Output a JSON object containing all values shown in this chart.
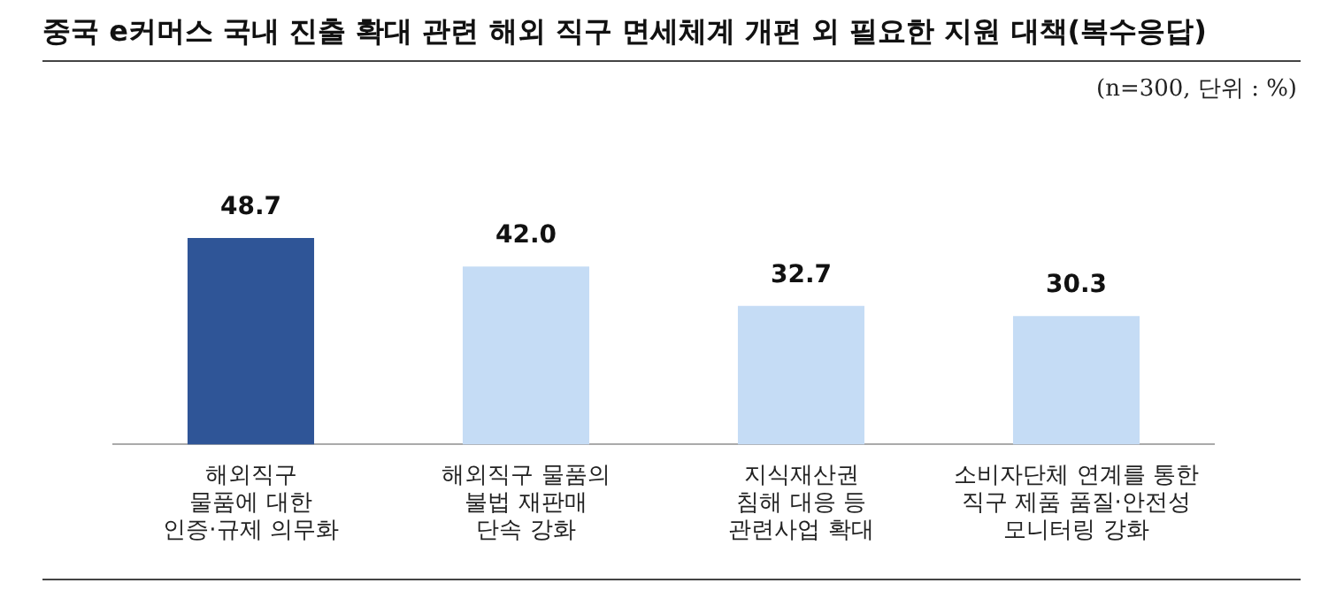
{
  "chart_data": {
    "type": "bar",
    "title": "중국 e커머스 국내 진출 확대 관련 해외 직구 면세체계 개편 외 필요한 지원 대책(복수응답)",
    "subtitle": "(n=300, 단위 : %)",
    "categories": [
      "해외직구\n물품에 대한\n인증·규제 의무화",
      "해외직구 물품의\n불법 재판매\n단속 강화",
      "지식재산권\n침해 대응 등\n관련사업 확대",
      "소비자단체 연계를 통한\n직구 제품 품질·안전성\n모니터링 강화"
    ],
    "values": [
      48.7,
      42.0,
      32.7,
      30.3
    ],
    "colors": [
      "#2f5597",
      "#c5dcf5",
      "#c5dcf5",
      "#c5dcf5"
    ],
    "value_labels": [
      "48.7",
      "42.0",
      "32.7",
      "30.3"
    ],
    "grid": false,
    "legend": false
  }
}
